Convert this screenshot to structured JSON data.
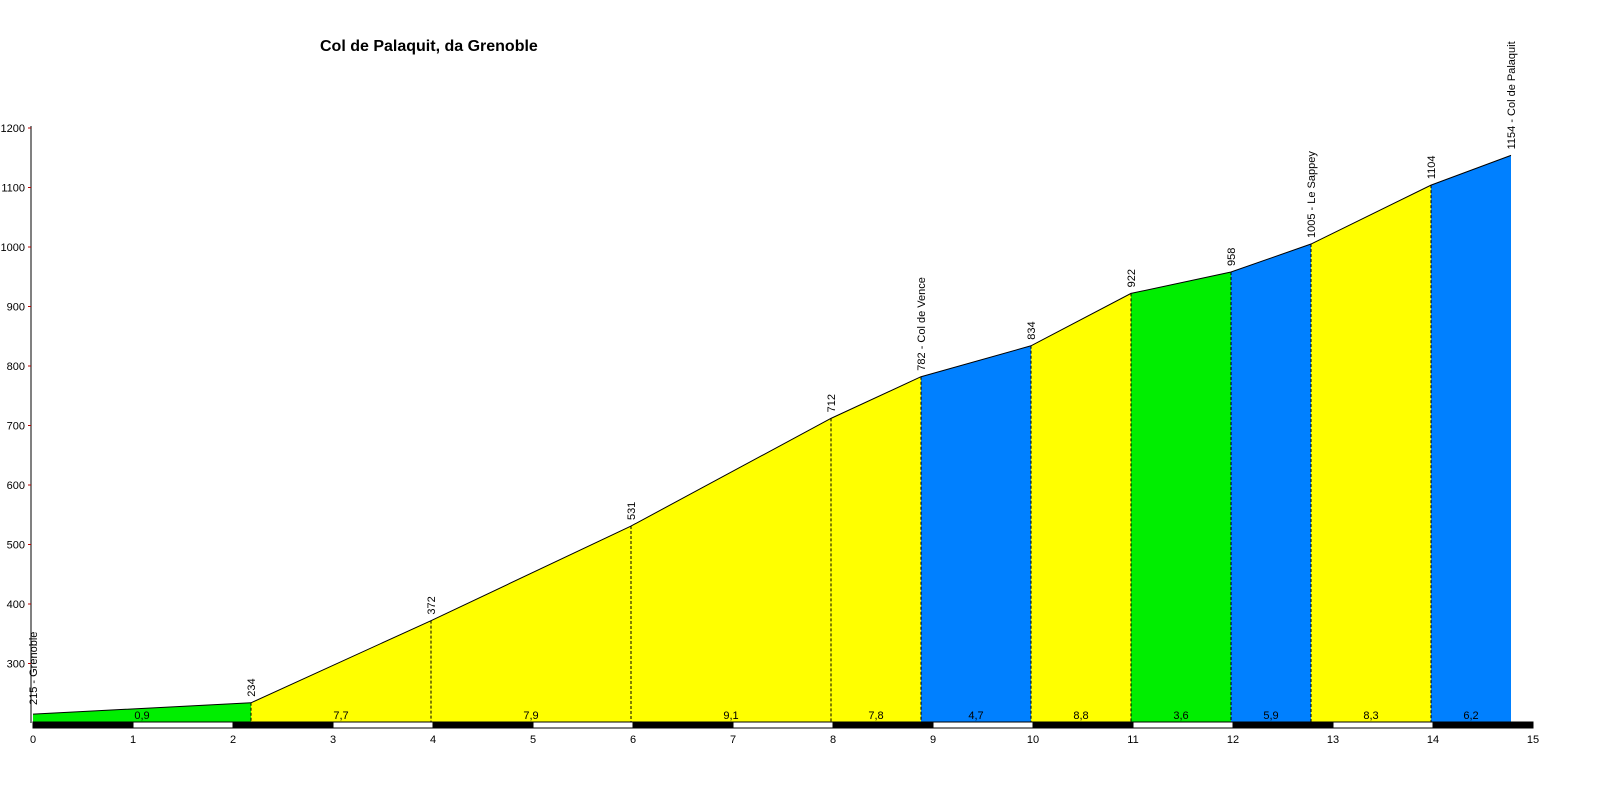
{
  "chart_data": {
    "type": "area",
    "title": "Col de Palaquit, da Grenoble",
    "xlim": [
      0,
      15
    ],
    "ylim": [
      200,
      1200
    ],
    "x_ticks": [
      0,
      1,
      2,
      3,
      4,
      5,
      6,
      7,
      8,
      9,
      10,
      11,
      12,
      13,
      14,
      15
    ],
    "y_ticks": [
      300,
      400,
      500,
      600,
      700,
      800,
      900,
      1000,
      1100,
      1200
    ],
    "points": [
      {
        "x": 0,
        "y": 215,
        "label": "215 - Grenoble"
      },
      {
        "x": 2.18,
        "y": 234,
        "label": "234"
      },
      {
        "x": 3.98,
        "y": 372,
        "label": "372"
      },
      {
        "x": 5.98,
        "y": 531,
        "label": "531"
      },
      {
        "x": 7.98,
        "y": 712,
        "label": "712"
      },
      {
        "x": 8.88,
        "y": 782,
        "label": "782 - Col de Vence"
      },
      {
        "x": 9.98,
        "y": 834,
        "label": "834"
      },
      {
        "x": 10.98,
        "y": 922,
        "label": "922"
      },
      {
        "x": 11.98,
        "y": 958,
        "label": "958"
      },
      {
        "x": 12.78,
        "y": 1005,
        "label": "1005 - Le Sappey"
      },
      {
        "x": 13.98,
        "y": 1104,
        "label": "1104"
      },
      {
        "x": 14.78,
        "y": 1154,
        "label": "1154 - Col de Palaquit"
      }
    ],
    "segments": [
      {
        "gradient": "0,9",
        "color": "#00ee00"
      },
      {
        "gradient": "7,7",
        "color": "#ffff00"
      },
      {
        "gradient": "7,9",
        "color": "#ffff00"
      },
      {
        "gradient": "9,1",
        "color": "#ffff00"
      },
      {
        "gradient": "7,8",
        "color": "#ffff00"
      },
      {
        "gradient": "4,7",
        "color": "#0080ff"
      },
      {
        "gradient": "8,8",
        "color": "#ffff00"
      },
      {
        "gradient": "3,6",
        "color": "#00ee00"
      },
      {
        "gradient": "5,9",
        "color": "#0080ff"
      },
      {
        "gradient": "8,3",
        "color": "#ffff00"
      },
      {
        "gradient": "6,2",
        "color": "#0080ff"
      }
    ],
    "xlabel": "",
    "ylabel": "",
    "grid": false
  }
}
